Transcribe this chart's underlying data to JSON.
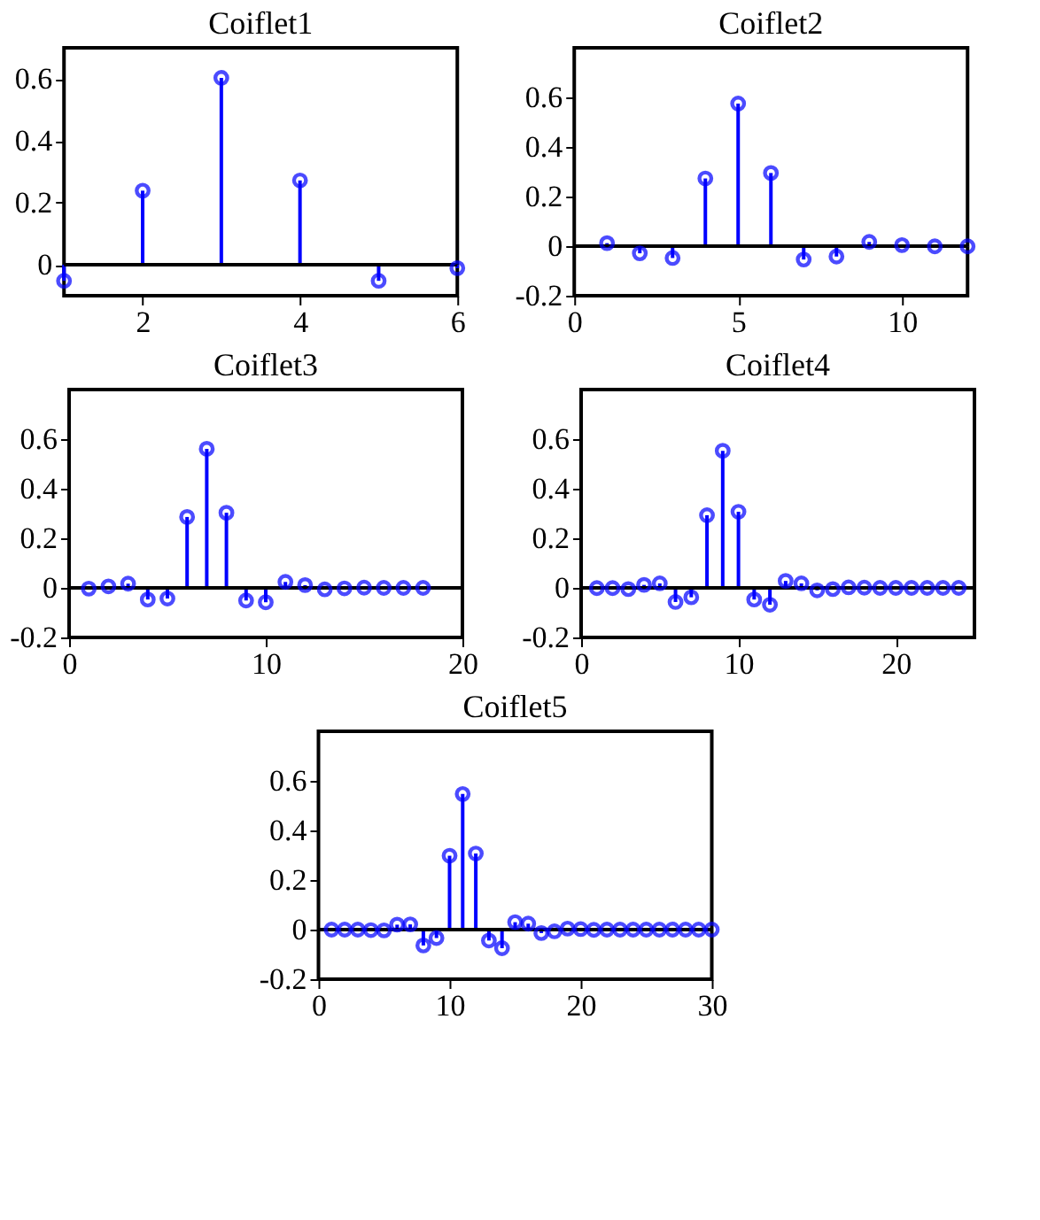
{
  "chart_data": [
    {
      "type": "lollipop",
      "title": "Coiflet1",
      "x": [
        1,
        2,
        3,
        4,
        5,
        6
      ],
      "values": [
        -0.052,
        0.239,
        0.603,
        0.272,
        -0.052,
        -0.011
      ],
      "color": "#0000ff",
      "marker": "circle",
      "xlim": [
        1,
        6
      ],
      "xticks": [
        2,
        4,
        6
      ],
      "ylim": [
        -0.1,
        0.7
      ],
      "yticks": [
        0,
        0.2,
        0.4,
        0.6
      ],
      "ref_lines": [
        {
          "axis": "y",
          "value": 0,
          "color": "#000000"
        }
      ]
    },
    {
      "type": "lollipop",
      "title": "Coiflet2",
      "x": [
        1,
        2,
        3,
        4,
        5,
        6,
        7,
        8,
        9,
        10,
        11,
        12
      ],
      "values": [
        0.012,
        -0.029,
        -0.048,
        0.273,
        0.575,
        0.295,
        -0.054,
        -0.042,
        0.017,
        0.004,
        -0.001,
        -0.001
      ],
      "color": "#0000ff",
      "marker": "circle",
      "xlim": [
        0,
        12
      ],
      "xticks": [
        0,
        5,
        10
      ],
      "ylim": [
        -0.2,
        0.8
      ],
      "yticks": [
        -0.2,
        0,
        0.2,
        0.4,
        0.6
      ],
      "ref_lines": [
        {
          "axis": "y",
          "value": 0,
          "color": "#000000"
        }
      ]
    },
    {
      "type": "lollipop",
      "title": "Coiflet3",
      "x": [
        1,
        2,
        3,
        4,
        5,
        6,
        7,
        8,
        9,
        10,
        11,
        12,
        13,
        14,
        15,
        16,
        17,
        18
      ],
      "values": [
        -0.003,
        0.006,
        0.017,
        -0.047,
        -0.043,
        0.286,
        0.561,
        0.303,
        -0.051,
        -0.058,
        0.024,
        0.011,
        -0.006,
        -0.002,
        0.001,
        0.0,
        0.0,
        0.0
      ],
      "color": "#0000ff",
      "marker": "circle",
      "xlim": [
        0,
        20
      ],
      "xticks": [
        0,
        10,
        20
      ],
      "ylim": [
        -0.2,
        0.8
      ],
      "yticks": [
        -0.2,
        0,
        0.2,
        0.4,
        0.6
      ],
      "ref_lines": [
        {
          "axis": "y",
          "value": 0,
          "color": "#000000"
        }
      ]
    },
    {
      "type": "lollipop",
      "title": "Coiflet4",
      "x": [
        1,
        2,
        3,
        4,
        5,
        6,
        7,
        8,
        9,
        10,
        11,
        12,
        13,
        14,
        15,
        16,
        17,
        18,
        19,
        20,
        21,
        22,
        23,
        24
      ],
      "values": [
        -0.001,
        -0.001,
        -0.005,
        0.012,
        0.018,
        -0.057,
        -0.038,
        0.293,
        0.553,
        0.307,
        -0.047,
        -0.068,
        0.028,
        0.018,
        -0.01,
        -0.005,
        0.002,
        0.001,
        0.0,
        0.0,
        0.0,
        0.0,
        0.0,
        0.0
      ],
      "color": "#0000ff",
      "marker": "circle",
      "xlim": [
        0,
        25
      ],
      "xticks": [
        0,
        10,
        20
      ],
      "ylim": [
        -0.2,
        0.8
      ],
      "yticks": [
        -0.2,
        0,
        0.2,
        0.4,
        0.6
      ],
      "ref_lines": [
        {
          "axis": "y",
          "value": 0,
          "color": "#000000"
        }
      ]
    },
    {
      "type": "lollipop",
      "title": "Coiflet5",
      "x": [
        1,
        2,
        3,
        4,
        5,
        6,
        7,
        8,
        9,
        10,
        11,
        12,
        13,
        14,
        15,
        16,
        17,
        18,
        19,
        20,
        21,
        22,
        23,
        24,
        25,
        26,
        27,
        28,
        29,
        30
      ],
      "values": [
        0.0,
        0.0,
        0.0,
        -0.002,
        -0.003,
        0.02,
        0.021,
        -0.064,
        -0.034,
        0.298,
        0.547,
        0.307,
        -0.044,
        -0.075,
        0.03,
        0.024,
        -0.014,
        -0.007,
        0.004,
        0.002,
        -0.001,
        0.0,
        0.0,
        0.0,
        0.0,
        0.0,
        0.0,
        0.0,
        0.0,
        0.0
      ],
      "color": "#0000ff",
      "marker": "circle",
      "xlim": [
        0,
        30
      ],
      "xticks": [
        0,
        10,
        20,
        30
      ],
      "ylim": [
        -0.2,
        0.8
      ],
      "yticks": [
        -0.2,
        0,
        0.2,
        0.4,
        0.6
      ],
      "ref_lines": [
        {
          "axis": "y",
          "value": 0,
          "color": "#000000"
        }
      ]
    }
  ]
}
